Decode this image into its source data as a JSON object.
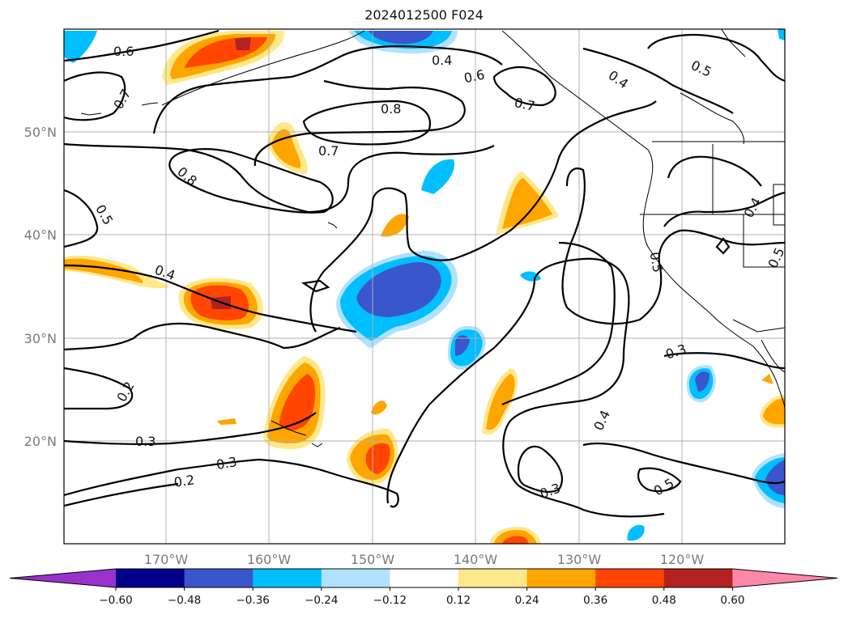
{
  "title": "2024012500 F024",
  "lon_labels": [
    "170°W",
    "160°W",
    "150°W",
    "140°W",
    "130°W",
    "120°W"
  ],
  "lat_labels": [
    "50°N",
    "40°N",
    "30°N",
    "20°N"
  ],
  "colorbar": {
    "ticks": [
      "−0.60",
      "−0.48",
      "−0.36",
      "−0.24",
      "−0.12",
      "0.12",
      "0.24",
      "0.36",
      "0.48",
      "0.60"
    ],
    "colors": [
      "#9932cc",
      "#00008b",
      "#3a56cc",
      "#00bfff",
      "#b0e2ff",
      "#ffffff",
      "#ffe88a",
      "#ffa500",
      "#ff4500",
      "#b22222",
      "#ff88aa"
    ]
  },
  "contour_labels": {
    "c1": "0.6",
    "c2": "0.4",
    "c3": "0.6",
    "c4": "0.7",
    "c5": "0.4",
    "c6": "0.5",
    "c7": "0.7",
    "c8": "0.8",
    "c9": "0.7",
    "c10": "0.8",
    "c11": "0.5",
    "c12": "0.4",
    "c13": "0.4",
    "c14": "0.5",
    "c15": "0.5",
    "c16": "0.3",
    "c17": "0.2",
    "c18": "0.3",
    "c19": "0.3",
    "c20": "0.2",
    "c21": "0.4",
    "c22": "0.3",
    "c23": "0.5"
  }
}
